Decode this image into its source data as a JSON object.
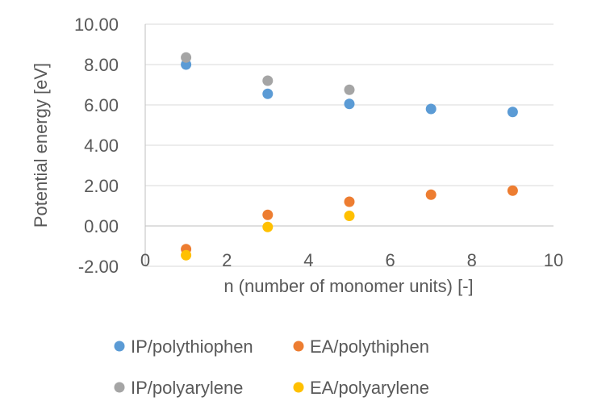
{
  "chart_data": {
    "type": "scatter",
    "title": "",
    "xlabel": "n (number of monomer units) [-]",
    "ylabel": "Potential energy [eV]",
    "xlim": [
      0,
      10
    ],
    "ylim": [
      -2,
      10
    ],
    "x_ticks": [
      "0",
      "2",
      "4",
      "6",
      "8",
      "10"
    ],
    "y_ticks": [
      "-2.00",
      "0.00",
      "2.00",
      "4.00",
      "6.00",
      "8.00",
      "10.00"
    ],
    "grid": "horizontal",
    "legend_position": "bottom",
    "series": [
      {
        "name": "IP/polythiophen",
        "color": "#5b9bd5",
        "x": [
          1,
          3,
          5,
          7,
          9
        ],
        "y": [
          8.0,
          6.55,
          6.05,
          5.8,
          5.65
        ]
      },
      {
        "name": "EA/polythiphen",
        "color": "#ed7d31",
        "x": [
          1,
          3,
          5,
          7,
          9
        ],
        "y": [
          -1.15,
          0.55,
          1.2,
          1.55,
          1.75
        ]
      },
      {
        "name": "IP/polyarylene",
        "color": "#a5a5a5",
        "x": [
          1,
          3,
          5
        ],
        "y": [
          8.35,
          7.2,
          6.75
        ]
      },
      {
        "name": "EA/polyarylene",
        "color": "#ffc000",
        "x": [
          1,
          3,
          5
        ],
        "y": [
          -1.45,
          -0.05,
          0.5
        ]
      }
    ]
  }
}
